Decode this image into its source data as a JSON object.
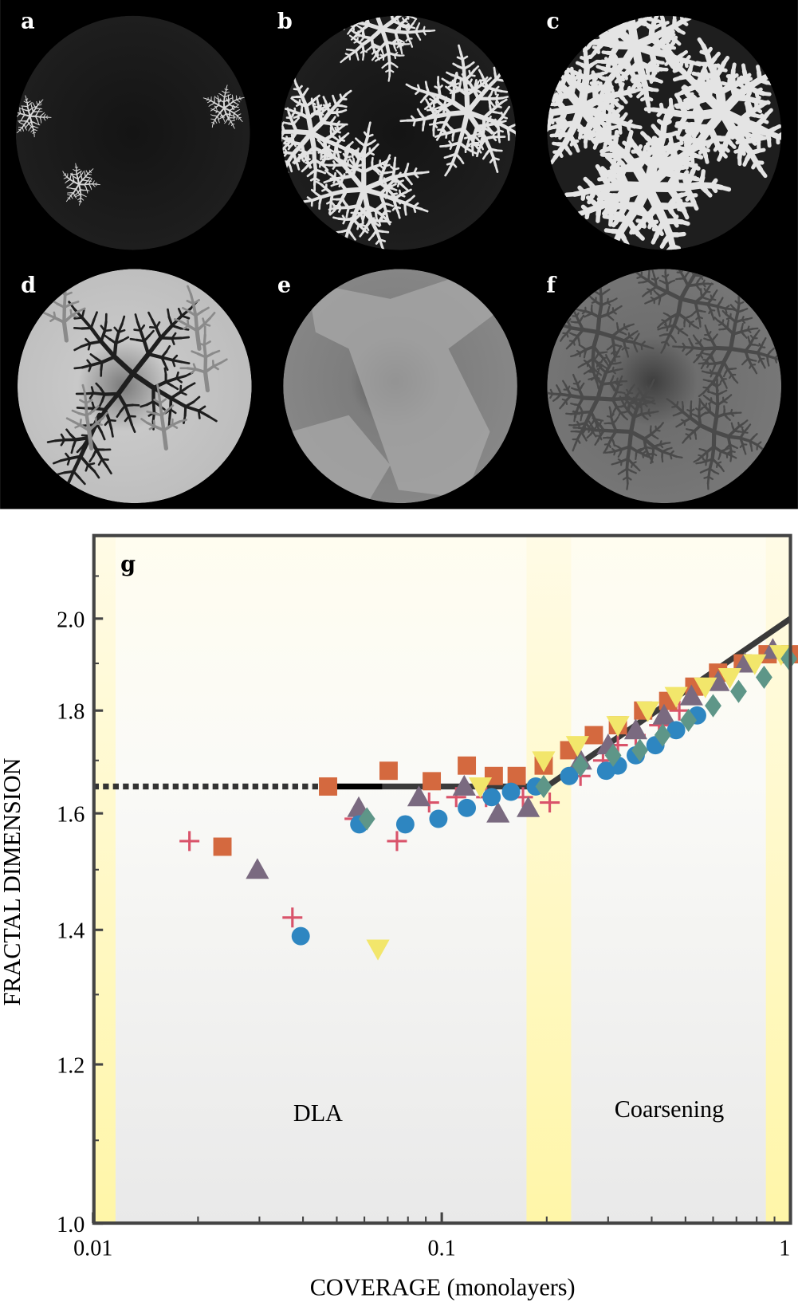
{
  "panels": [
    {
      "label": "a"
    },
    {
      "label": "b"
    },
    {
      "label": "c"
    },
    {
      "label": "d"
    },
    {
      "label": "e"
    },
    {
      "label": "f"
    }
  ],
  "chart_data": {
    "type": "scatter",
    "panel_label": "g",
    "xlabel": "COVERAGE (monolayers)",
    "ylabel": "FRACTAL DIMENSION",
    "xscale": "log",
    "yscale": "log",
    "xlim": [
      0.01,
      1
    ],
    "ylim": [
      1.0,
      2.2
    ],
    "xticks": [
      {
        "v": 0.01,
        "label": "0.01"
      },
      {
        "v": 0.1,
        "label": "0.1"
      },
      {
        "v": 1,
        "label": "1"
      }
    ],
    "yticks": [
      {
        "v": 1.0,
        "label": "1.0"
      },
      {
        "v": 1.2,
        "label": "1.2"
      },
      {
        "v": 1.4,
        "label": "1.4"
      },
      {
        "v": 1.6,
        "label": "1.6"
      },
      {
        "v": 1.8,
        "label": "1.8"
      },
      {
        "v": 2.0,
        "label": "2.0"
      }
    ],
    "regions": [
      {
        "name": "DLA",
        "label": "DLA",
        "x": [
          0.0116,
          0.175
        ]
      },
      {
        "name": "Coarsening",
        "label": "Coarsening",
        "x": [
          0.235,
          0.85
        ]
      }
    ],
    "transition_bands": [
      [
        0.01,
        0.0116
      ],
      [
        0.175,
        0.235
      ],
      [
        0.85,
        1.0
      ]
    ],
    "fit_lines": [
      {
        "style": "dotted",
        "points": [
          [
            0.01,
            1.65
          ],
          [
            0.047,
            1.65
          ]
        ]
      },
      {
        "style": "solid-black",
        "points": [
          [
            0.047,
            1.65
          ],
          [
            0.0675,
            1.65
          ]
        ]
      },
      {
        "style": "solid-gray",
        "points": [
          [
            0.0675,
            1.65
          ],
          [
            0.2,
            1.65
          ],
          [
            1.0,
            2.0
          ]
        ]
      }
    ],
    "series": [
      {
        "name": "plus",
        "marker": "plus",
        "color": "#d9536a",
        "points": [
          [
            0.0189,
            1.55
          ],
          [
            0.0373,
            1.42
          ],
          [
            0.0562,
            1.59
          ],
          [
            0.0744,
            1.55
          ],
          [
            0.092,
            1.62
          ],
          [
            0.11,
            1.63
          ],
          [
            0.134,
            1.63
          ],
          [
            0.171,
            1.63
          ],
          [
            0.204,
            1.62
          ],
          [
            0.25,
            1.67
          ],
          [
            0.29,
            1.7
          ],
          [
            0.32,
            1.73
          ],
          [
            0.36,
            1.75
          ],
          [
            0.42,
            1.77
          ],
          [
            0.48,
            1.8
          ]
        ]
      },
      {
        "name": "square",
        "marker": "square",
        "color": "#d4693f",
        "points": [
          [
            0.0235,
            1.54
          ],
          [
            0.0472,
            1.65
          ],
          [
            0.0704,
            1.68
          ],
          [
            0.0936,
            1.66
          ],
          [
            0.118,
            1.69
          ],
          [
            0.141,
            1.67
          ],
          [
            0.164,
            1.67
          ],
          [
            0.196,
            1.69
          ],
          [
            0.232,
            1.72
          ],
          [
            0.273,
            1.75
          ],
          [
            0.32,
            1.77
          ],
          [
            0.378,
            1.8
          ],
          [
            0.446,
            1.82
          ],
          [
            0.53,
            1.85
          ],
          [
            0.62,
            1.88
          ],
          [
            0.73,
            1.9
          ],
          [
            0.86,
            1.92
          ],
          [
            1.0,
            1.92
          ]
        ]
      },
      {
        "name": "triangle-up",
        "marker": "triangle-up",
        "color": "#7a6a80",
        "points": [
          [
            0.0296,
            1.5
          ],
          [
            0.0578,
            1.61
          ],
          [
            0.086,
            1.63
          ],
          [
            0.116,
            1.65
          ],
          [
            0.145,
            1.6
          ],
          [
            0.177,
            1.61
          ],
          [
            0.25,
            1.7
          ],
          [
            0.3,
            1.73
          ],
          [
            0.36,
            1.76
          ],
          [
            0.434,
            1.79
          ],
          [
            0.52,
            1.83
          ],
          [
            0.62,
            1.86
          ],
          [
            0.74,
            1.9
          ],
          [
            0.89,
            1.93
          ]
        ]
      },
      {
        "name": "circle",
        "marker": "circle",
        "color": "#2e86c1",
        "points": [
          [
            0.0394,
            1.39
          ],
          [
            0.058,
            1.58
          ],
          [
            0.0786,
            1.58
          ],
          [
            0.0978,
            1.59
          ],
          [
            0.118,
            1.61
          ],
          [
            0.139,
            1.63
          ],
          [
            0.158,
            1.64
          ],
          [
            0.186,
            1.65
          ],
          [
            0.232,
            1.67
          ],
          [
            0.296,
            1.68
          ],
          [
            0.32,
            1.69
          ],
          [
            0.36,
            1.71
          ],
          [
            0.41,
            1.73
          ],
          [
            0.47,
            1.76
          ],
          [
            0.54,
            1.79
          ]
        ]
      },
      {
        "name": "triangle-down",
        "marker": "triangle-down",
        "color": "#f2e66b",
        "points": [
          [
            0.0656,
            1.37
          ],
          [
            0.129,
            1.65
          ],
          [
            0.196,
            1.7
          ],
          [
            0.245,
            1.73
          ],
          [
            0.32,
            1.77
          ],
          [
            0.39,
            1.8
          ],
          [
            0.47,
            1.83
          ],
          [
            0.57,
            1.85
          ],
          [
            0.67,
            1.87
          ],
          [
            0.79,
            1.9
          ],
          [
            0.94,
            1.92
          ]
        ]
      },
      {
        "name": "diamond",
        "marker": "diamond",
        "color": "#5e9688",
        "points": [
          [
            0.061,
            1.59
          ],
          [
            0.196,
            1.65
          ],
          [
            0.25,
            1.69
          ],
          [
            0.31,
            1.71
          ],
          [
            0.37,
            1.72
          ],
          [
            0.43,
            1.75
          ],
          [
            0.51,
            1.78
          ],
          [
            0.6,
            1.81
          ],
          [
            0.71,
            1.84
          ],
          [
            0.84,
            1.87
          ],
          [
            0.99,
            1.91
          ]
        ]
      }
    ]
  }
}
